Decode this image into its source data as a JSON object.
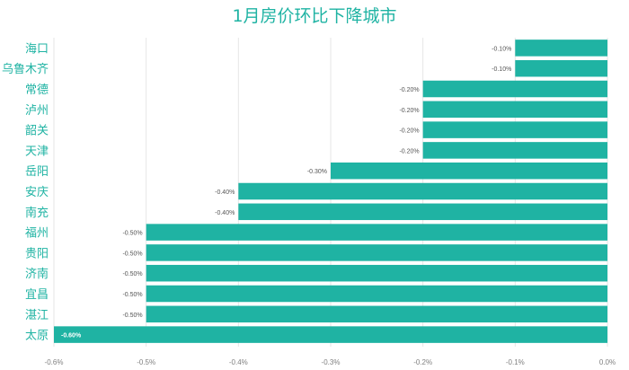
{
  "chart_data": {
    "type": "bar",
    "orientation": "horizontal",
    "title": "1月房价环比下降城市",
    "categories": [
      "海口",
      "乌鲁木齐",
      "常德",
      "泸州",
      "韶关",
      "天津",
      "岳阳",
      "安庆",
      "南充",
      "福州",
      "贵阳",
      "济南",
      "宜昌",
      "湛江",
      "太原"
    ],
    "values": [
      -0.1,
      -0.1,
      -0.2,
      -0.2,
      -0.2,
      -0.2,
      -0.3,
      -0.4,
      -0.4,
      -0.5,
      -0.5,
      -0.5,
      -0.5,
      -0.5,
      -0.6
    ],
    "data_labels": [
      "-0.10%",
      "-0.10%",
      "-0.20%",
      "-0.20%",
      "-0.20%",
      "-0.20%",
      "-0.30%",
      "-0.40%",
      "-0.40%",
      "-0.50%",
      "-0.50%",
      "-0.50%",
      "-0.50%",
      "-0.50%",
      "-0.60%"
    ],
    "xlim": [
      -0.6,
      0.0
    ],
    "xticks": [
      -0.6,
      -0.5,
      -0.4,
      -0.3,
      -0.2,
      -0.1,
      0.0
    ],
    "xtick_labels": [
      "-0.6%",
      "-0.5%",
      "-0.4%",
      "-0.3%",
      "-0.2%",
      "-0.1%",
      "0.0%"
    ],
    "xlabel": "",
    "ylabel": "",
    "grid": true,
    "legend": "none",
    "bar_color": "#1fb3a3",
    "title_color": "#1fb3a3",
    "category_color": "#1fb3a3"
  }
}
